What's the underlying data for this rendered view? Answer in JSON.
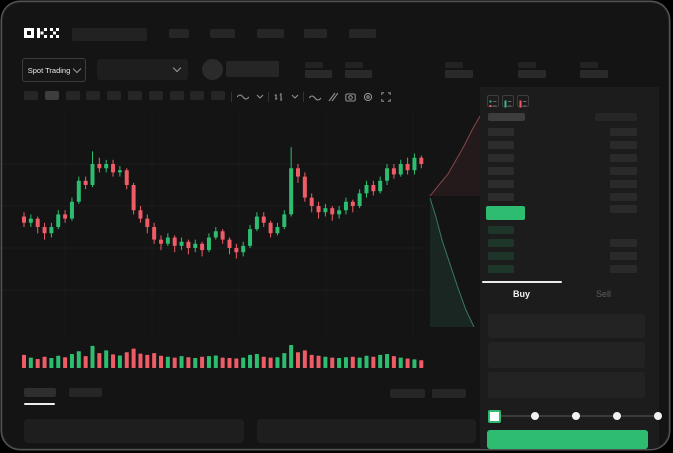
{
  "brand": {
    "logo_name": "okx-logo"
  },
  "header": {
    "nav_placeholders": 5,
    "market_selector": {
      "label": "Spot Trading"
    },
    "stats_placeholders": 5
  },
  "chart_toolbar": {
    "interval_placeholders": 10,
    "icons": [
      "wave-indicator-icon",
      "caret-icon",
      "candle-style-icon",
      "caret-icon",
      "line-tool-icon",
      "brush-tool-icon",
      "camera-icon",
      "settings-gear-icon",
      "fullscreen-icon"
    ]
  },
  "order_book": {
    "mode_icons": [
      "book-both-sides-icon",
      "book-bids-only-icon",
      "book-asks-only-icon"
    ],
    "ask_rows": 6,
    "bid_rows": 4,
    "last_price_highlight_color": "#2EBD70"
  },
  "trade_panel": {
    "buy_tab": "Buy",
    "sell_tab": "Sell",
    "fields": 3,
    "slider_steps": 5,
    "slider_selected_index": 0,
    "submit_color": "#2EBD70"
  },
  "colors": {
    "up": "#2EBD70",
    "down": "#EE5C67",
    "background": "#141414",
    "panel": "#1c1c1c",
    "depth_ask_line": "#c96a6f",
    "depth_bid_line": "#3fae8c"
  },
  "chart_data": {
    "type": "candlestick",
    "title": "",
    "x": "time (redacted axis)",
    "ylim": [
      0,
      100
    ],
    "grid": "faint-horizontal",
    "colors": {
      "up": "#2EBD70",
      "down": "#EE5C67"
    },
    "candles": {
      "o": [
        55,
        52,
        54,
        50,
        47,
        50,
        56,
        54,
        62,
        72,
        70,
        80,
        78,
        80,
        76,
        77,
        70,
        58,
        54,
        50,
        44,
        42,
        45,
        41,
        43,
        40,
        42,
        39,
        45,
        48,
        44,
        40,
        38,
        41,
        49,
        55,
        52,
        47,
        50,
        56,
        78,
        74,
        64,
        60,
        57,
        59,
        56,
        58,
        62,
        60,
        66,
        70,
        67,
        72,
        78,
        75,
        80,
        77,
        83
      ],
      "c": [
        52,
        54,
        50,
        47,
        50,
        56,
        54,
        62,
        72,
        70,
        80,
        78,
        80,
        76,
        77,
        70,
        58,
        54,
        50,
        44,
        42,
        45,
        41,
        43,
        40,
        42,
        39,
        45,
        48,
        44,
        40,
        38,
        41,
        49,
        55,
        52,
        47,
        50,
        56,
        78,
        74,
        64,
        60,
        57,
        59,
        56,
        58,
        62,
        60,
        66,
        70,
        67,
        72,
        78,
        75,
        80,
        77,
        83,
        80
      ],
      "h": [
        57,
        56,
        55,
        52,
        52,
        58,
        58,
        64,
        74,
        74,
        86,
        83,
        82,
        82,
        79,
        78,
        71,
        60,
        56,
        52,
        46,
        47,
        46,
        45,
        44,
        44,
        43,
        47,
        50,
        49,
        45,
        42,
        43,
        51,
        57,
        57,
        53,
        52,
        58,
        88,
        80,
        76,
        66,
        62,
        61,
        60,
        60,
        64,
        63,
        68,
        72,
        72,
        74,
        80,
        80,
        82,
        83,
        85,
        84
      ],
      "l": [
        50,
        50,
        47,
        44,
        45,
        49,
        52,
        53,
        61,
        68,
        69,
        76,
        76,
        74,
        74,
        68,
        56,
        52,
        47,
        42,
        39,
        41,
        38,
        39,
        37,
        38,
        36,
        38,
        44,
        42,
        37,
        35,
        36,
        40,
        48,
        50,
        45,
        46,
        49,
        55,
        71,
        62,
        57,
        54,
        55,
        53,
        54,
        56,
        57,
        59,
        64,
        65,
        66,
        70,
        73,
        74,
        75,
        75,
        78
      ]
    },
    "volumes": [
      45,
      30,
      22,
      35,
      28,
      40,
      32,
      50,
      65,
      38,
      95,
      55,
      70,
      48,
      42,
      60,
      80,
      52,
      45,
      55,
      40,
      35,
      30,
      38,
      32,
      28,
      35,
      38,
      42,
      30,
      28,
      25,
      30,
      45,
      50,
      35,
      30,
      32,
      55,
      100,
      60,
      70,
      45,
      40,
      35,
      30,
      28,
      32,
      35,
      30,
      40,
      35,
      45,
      50,
      38,
      30,
      25,
      20,
      15
    ]
  }
}
